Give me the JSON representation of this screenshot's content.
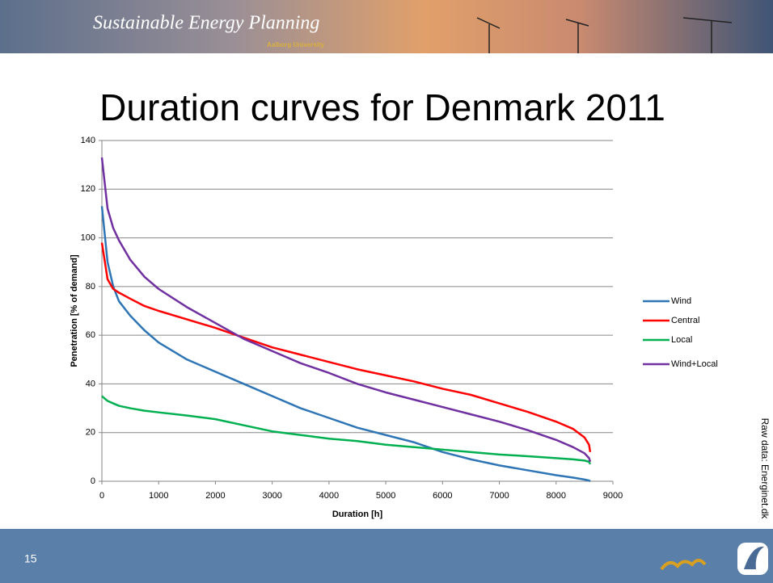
{
  "header": {
    "title": "Sustainable Energy Planning",
    "subtitle": "Aalborg University"
  },
  "source": "Raw data: Energinet.dk",
  "slide_number": "15",
  "chart_data": {
    "type": "line",
    "title": "Duration curves for Denmark 2011",
    "x_label": "Duration [h]",
    "y_label": "Penetration [% of demand]",
    "x": [
      0,
      100,
      200,
      300,
      500,
      750,
      1000,
      1500,
      2000,
      2500,
      3000,
      3500,
      4000,
      4500,
      5000,
      5500,
      6000,
      6500,
      7000,
      7500,
      8000,
      8300,
      8500,
      8580,
      8600
    ],
    "series": [
      {
        "name": "Wind",
        "color": "#2e75b6",
        "values": [
          113,
          90,
          80,
          74,
          68,
          62,
          57,
          50,
          45,
          40,
          35,
          30,
          26,
          22,
          19,
          16,
          12,
          9,
          6.5,
          4.5,
          2.5,
          1.5,
          0.7,
          0.3,
          0
        ]
      },
      {
        "name": "Central",
        "color": "#ff0000",
        "values": [
          98,
          83,
          79,
          77.5,
          75,
          72,
          70,
          66.5,
          63,
          59,
          55,
          52,
          49,
          46,
          43.5,
          41,
          38,
          35.5,
          32,
          28.5,
          24.5,
          21.5,
          18,
          15,
          12
        ]
      },
      {
        "name": "Local",
        "color": "#00b050",
        "values": [
          35,
          33,
          32,
          31,
          30,
          29,
          28.3,
          27,
          25.5,
          23,
          20.5,
          19,
          17.5,
          16.5,
          15,
          14,
          13,
          12,
          11,
          10.3,
          9.5,
          9,
          8.5,
          8,
          7
        ]
      },
      {
        "name": "Wind+Local",
        "color": "#7030a0",
        "values": [
          133,
          112,
          104,
          99,
          91,
          84,
          79,
          71.5,
          65,
          58.5,
          53.5,
          48.5,
          44.5,
          40,
          36.5,
          33.5,
          30.5,
          27.5,
          24.5,
          21,
          17,
          14,
          11.5,
          9.5,
          8
        ]
      }
    ],
    "xlim": [
      0,
      9000
    ],
    "xticks": [
      0,
      1000,
      2000,
      3000,
      4000,
      5000,
      6000,
      7000,
      8000,
      9000
    ],
    "ylim": [
      0,
      140
    ],
    "yticks": [
      0,
      20,
      40,
      60,
      80,
      100,
      120,
      140
    ],
    "grid": true,
    "legend": "right"
  }
}
